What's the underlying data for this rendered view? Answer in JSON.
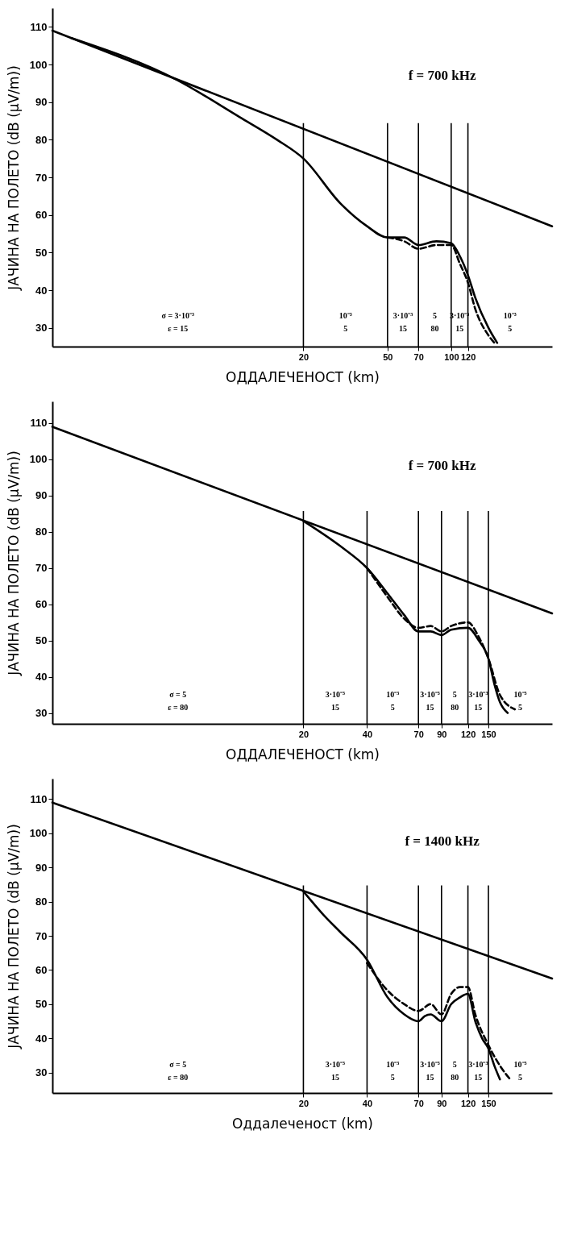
{
  "chart_data": [
    {
      "type": "line",
      "annotations": [
        "f = 700 kHz",
        "σ = 3·10⁻³\nε = 15",
        "10⁻³\n5",
        "3·10⁻³\n15",
        "5\n80",
        "3·10⁻³\n15",
        "10⁻³\n5"
      ],
      "xlabel": "ОДДАЛЕЧЕНОСТ (km)",
      "ylabel": "ЈАЧИНА НА ПОЛЕТО (dB (μV/m))",
      "log": "x",
      "xlim": [
        1.3,
        300
      ],
      "xticks": [
        20,
        50,
        70,
        100,
        120
      ],
      "ylim": [
        25,
        115
      ],
      "yticks": [
        30,
        40,
        50,
        60,
        70,
        80,
        90,
        100,
        110
      ],
      "ref_lines": [
        {
          "axis": "x",
          "value": 20
        },
        {
          "axis": "x",
          "value": 50
        },
        {
          "axis": "x",
          "value": 70
        },
        {
          "axis": "x",
          "value": 100
        },
        {
          "axis": "x",
          "value": 120
        }
      ],
      "series": [
        {
          "color": "#000000",
          "line_style": "solid",
          "x": [
            1.3,
            300
          ],
          "values": [
            109,
            57
          ]
        },
        {
          "color": "#000000",
          "line_style": "solid",
          "x": [
            1.6,
            5,
            10,
            15,
            20,
            30,
            40,
            50,
            60,
            70,
            85,
            100,
            110,
            120,
            130,
            150,
            165
          ],
          "values": [
            107,
            96,
            86,
            80,
            75,
            63,
            57,
            54,
            54,
            52,
            53,
            52.5,
            49,
            44,
            38,
            30,
            26
          ]
        },
        {
          "color": "#000000",
          "line_style": "dashed",
          "x": [
            50,
            60,
            70,
            85,
            100,
            110,
            120,
            130,
            150,
            160
          ],
          "values": [
            54,
            53,
            51,
            52,
            52,
            47,
            42,
            35,
            28,
            26
          ]
        }
      ]
    },
    {
      "type": "line",
      "annotations": [
        "f = 700 kHz",
        "σ = 5\nε = 80",
        "3·10⁻³\n15",
        "10⁻³\n5",
        "3·10⁻³\n15",
        "5\n80",
        "3·10⁻³\n15",
        "10⁻³\n5"
      ],
      "xlabel": "ОДДАЛЕЧЕНОСТ (km)",
      "ylabel": "ЈАЧИНА НА ПОЛЕТО (dB (μV/m))",
      "log": "x",
      "xlim": [
        1.3,
        300
      ],
      "xticks": [
        20,
        40,
        70,
        90,
        120,
        150
      ],
      "ylim": [
        27,
        116
      ],
      "yticks": [
        30,
        40,
        50,
        60,
        70,
        80,
        90,
        100,
        110
      ],
      "ref_lines": [
        {
          "axis": "x",
          "value": 20
        },
        {
          "axis": "x",
          "value": 40
        },
        {
          "axis": "x",
          "value": 70
        },
        {
          "axis": "x",
          "value": 90
        },
        {
          "axis": "x",
          "value": 120
        },
        {
          "axis": "x",
          "value": 150
        }
      ],
      "series": [
        {
          "color": "#000000",
          "line_style": "solid",
          "x": [
            1.3,
            300
          ],
          "values": [
            109,
            57.5
          ]
        },
        {
          "color": "#000000",
          "line_style": "solid",
          "x": [
            20,
            30,
            40,
            50,
            60,
            70,
            80,
            90,
            100,
            120,
            135,
            150,
            160,
            170,
            185
          ],
          "values": [
            83,
            76,
            70,
            63,
            57,
            52.5,
            52.5,
            51.5,
            53,
            53.5,
            50,
            45,
            38,
            33,
            30
          ]
        },
        {
          "color": "#000000",
          "line_style": "dashed",
          "x": [
            40,
            50,
            60,
            70,
            80,
            90,
            100,
            120,
            135,
            150,
            170,
            200
          ],
          "values": [
            70,
            62,
            56,
            53.5,
            54,
            52.5,
            54,
            55,
            51,
            45,
            35,
            31
          ]
        }
      ]
    },
    {
      "type": "line",
      "annotations": [
        "f = 1400 kHz",
        "σ = 5\nε = 80",
        "3·10⁻³\n15",
        "10⁻³\n5",
        "3·10⁻³\n15",
        "5\n80",
        "3·10⁻³\n15",
        "10⁻³\n5"
      ],
      "xlabel": "Оддалеченост (km)",
      "ylabel": "ЈАЧИНА НА ПОЛЕТО (dB (μV/m))",
      "log": "x",
      "xlim": [
        1.3,
        300
      ],
      "xticks": [
        20,
        40,
        70,
        90,
        120,
        150
      ],
      "ylim": [
        24,
        116
      ],
      "yticks": [
        30,
        40,
        50,
        60,
        70,
        80,
        90,
        100,
        110
      ],
      "ref_lines": [
        {
          "axis": "x",
          "value": 20
        },
        {
          "axis": "x",
          "value": 40
        },
        {
          "axis": "x",
          "value": 70
        },
        {
          "axis": "x",
          "value": 90
        },
        {
          "axis": "x",
          "value": 120
        },
        {
          "axis": "x",
          "value": 150
        }
      ],
      "series": [
        {
          "color": "#000000",
          "line_style": "solid",
          "x": [
            1.3,
            300
          ],
          "values": [
            109,
            57.5
          ]
        },
        {
          "color": "#000000",
          "line_style": "solid",
          "x": [
            20,
            25,
            30,
            40,
            50,
            60,
            70,
            75,
            80,
            90,
            100,
            110,
            120,
            130,
            140,
            150,
            160,
            170
          ],
          "values": [
            83,
            76,
            71,
            63,
            52,
            47,
            45,
            46.5,
            47,
            45,
            50,
            52,
            53,
            45,
            40,
            37,
            32,
            28
          ]
        },
        {
          "color": "#000000",
          "line_style": "dashed",
          "x": [
            40,
            50,
            60,
            70,
            80,
            90,
            100,
            110,
            120,
            130,
            150,
            170,
            190
          ],
          "values": [
            62,
            54,
            50,
            48,
            50,
            47,
            53,
            55,
            55,
            47,
            38,
            32,
            28
          ]
        }
      ]
    }
  ]
}
